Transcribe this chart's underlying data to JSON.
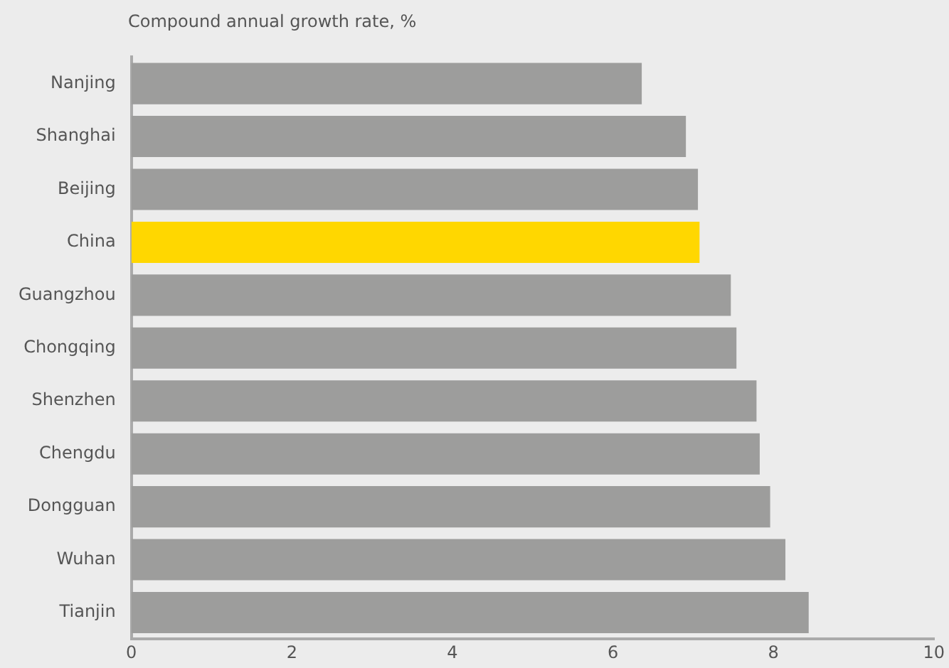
{
  "chart_data": {
    "type": "bar",
    "orientation": "horizontal",
    "title": "Compound annual growth rate, %",
    "categories": [
      "Nanjing",
      "Shanghai",
      "Beijing",
      "China",
      "Guangzhou",
      "Chongqing",
      "Shenzhen",
      "Chengdu",
      "Dongguan",
      "Wuhan",
      "Tianjin"
    ],
    "values": [
      6.36,
      6.91,
      7.06,
      7.08,
      7.47,
      7.54,
      7.79,
      7.83,
      7.96,
      8.15,
      8.44
    ],
    "colors": [
      "#9d9d9c",
      "#9d9d9c",
      "#9d9d9c",
      "#ffd700",
      "#9d9d9c",
      "#9d9d9c",
      "#9d9d9c",
      "#9d9d9c",
      "#9d9d9c",
      "#9d9d9c",
      "#9d9d9c"
    ],
    "xlim": [
      0,
      10
    ],
    "xticks": [
      0,
      2,
      4,
      6,
      8,
      10
    ],
    "grid": false,
    "legend": false
  }
}
